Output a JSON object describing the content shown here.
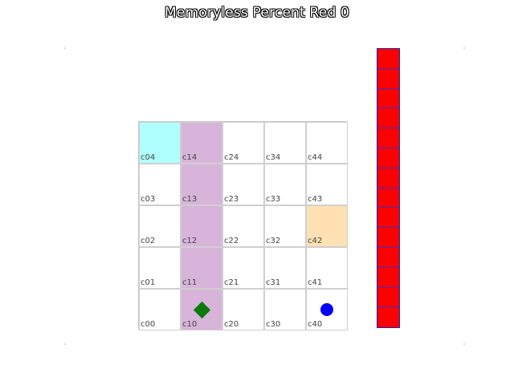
{
  "title": "Memoryless Percent Red 0",
  "grid": {
    "rows": 5,
    "cols": 5,
    "cells": [
      {
        "label": "c04",
        "col": 0,
        "row": 4,
        "color": "#b0ffff"
      },
      {
        "label": "c14",
        "col": 1,
        "row": 4,
        "color": "#d8b4da"
      },
      {
        "label": "c24",
        "col": 2,
        "row": 4,
        "color": "#ffffff"
      },
      {
        "label": "c34",
        "col": 3,
        "row": 4,
        "color": "#ffffff"
      },
      {
        "label": "c44",
        "col": 4,
        "row": 4,
        "color": "#ffffff"
      },
      {
        "label": "c03",
        "col": 0,
        "row": 3,
        "color": "#ffffff"
      },
      {
        "label": "c13",
        "col": 1,
        "row": 3,
        "color": "#d8b4da"
      },
      {
        "label": "c23",
        "col": 2,
        "row": 3,
        "color": "#ffffff"
      },
      {
        "label": "c33",
        "col": 3,
        "row": 3,
        "color": "#ffffff"
      },
      {
        "label": "c43",
        "col": 4,
        "row": 3,
        "color": "#ffffff"
      },
      {
        "label": "c02",
        "col": 0,
        "row": 2,
        "color": "#ffffff"
      },
      {
        "label": "c12",
        "col": 1,
        "row": 2,
        "color": "#d8b4da"
      },
      {
        "label": "c22",
        "col": 2,
        "row": 2,
        "color": "#ffffff"
      },
      {
        "label": "c32",
        "col": 3,
        "row": 2,
        "color": "#ffffff"
      },
      {
        "label": "c42",
        "col": 4,
        "row": 2,
        "color": "#ffe1b4"
      },
      {
        "label": "c01",
        "col": 0,
        "row": 1,
        "color": "#ffffff"
      },
      {
        "label": "c11",
        "col": 1,
        "row": 1,
        "color": "#d8b4da"
      },
      {
        "label": "c21",
        "col": 2,
        "row": 1,
        "color": "#ffffff"
      },
      {
        "label": "c31",
        "col": 3,
        "row": 1,
        "color": "#ffffff"
      },
      {
        "label": "c41",
        "col": 4,
        "row": 1,
        "color": "#ffffff"
      },
      {
        "label": "c00",
        "col": 0,
        "row": 0,
        "color": "#ffffff"
      },
      {
        "label": "c10",
        "col": 1,
        "row": 0,
        "color": "#d8b4da"
      },
      {
        "label": "c20",
        "col": 2,
        "row": 0,
        "color": "#ffffff"
      },
      {
        "label": "c30",
        "col": 3,
        "row": 0,
        "color": "#ffffff"
      },
      {
        "label": "c40",
        "col": 4,
        "row": 0,
        "color": "#ffffff"
      }
    ]
  },
  "tokens": [
    {
      "name": "agent-diamond",
      "shape": "diamond",
      "col": 1,
      "row": 0,
      "color": "#0a7a0a"
    },
    {
      "name": "goal-dot",
      "shape": "circle",
      "col": 4,
      "row": 0,
      "color": "#0000ff"
    }
  ],
  "bar": {
    "segments": 14,
    "color": "#ff0000",
    "border": "#2222aa"
  }
}
